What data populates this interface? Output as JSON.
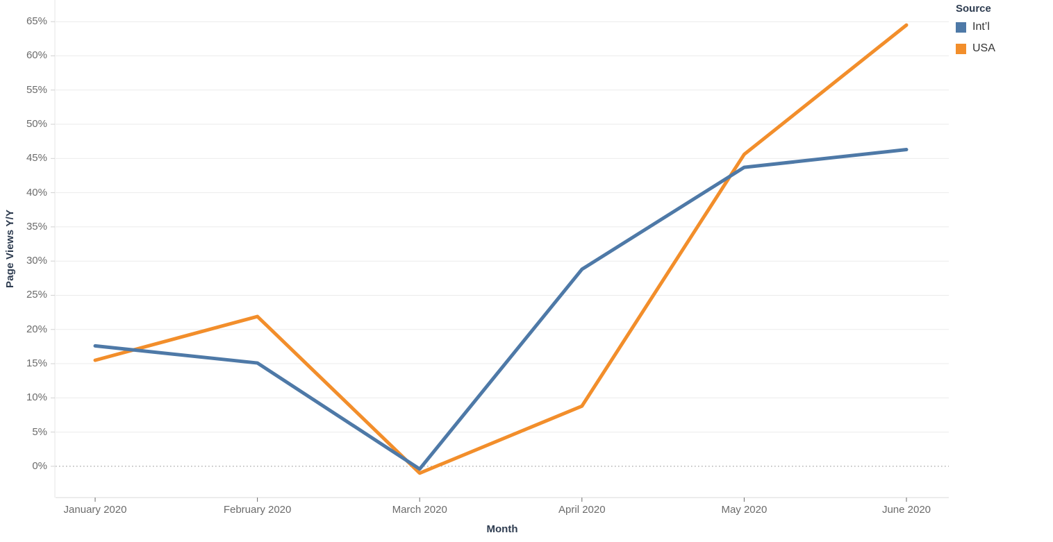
{
  "chart_data": {
    "type": "line",
    "title": "",
    "xlabel": "Month",
    "ylabel": "Page Views Y/Y",
    "legend_title": "Source",
    "legend_position": "top-right",
    "grid": "horizontal",
    "zero_line_style": "dotted",
    "ylim": [
      -4.6,
      68
    ],
    "y_tick_format": "percent",
    "categories": [
      "January 2020",
      "February 2020",
      "March 2020",
      "April 2020",
      "May 2020",
      "June 2020"
    ],
    "y_ticks": [
      {
        "value": 0,
        "label": "0%"
      },
      {
        "value": 5,
        "label": "5%"
      },
      {
        "value": 10,
        "label": "10%"
      },
      {
        "value": 15,
        "label": "15%"
      },
      {
        "value": 20,
        "label": "20%"
      },
      {
        "value": 25,
        "label": "25%"
      },
      {
        "value": 30,
        "label": "30%"
      },
      {
        "value": 35,
        "label": "35%"
      },
      {
        "value": 40,
        "label": "40%"
      },
      {
        "value": 45,
        "label": "45%"
      },
      {
        "value": 50,
        "label": "50%"
      },
      {
        "value": 55,
        "label": "55%"
      },
      {
        "value": 60,
        "label": "60%"
      },
      {
        "value": 65,
        "label": "65%"
      }
    ],
    "series": [
      {
        "name": "Int’l",
        "color": "#4e79a7",
        "values": [
          17.6,
          15.1,
          -0.4,
          28.8,
          43.7,
          46.3
        ]
      },
      {
        "name": "USA",
        "color": "#f28e2b",
        "values": [
          15.5,
          21.9,
          -1.0,
          8.8,
          45.6,
          64.5
        ]
      }
    ]
  },
  "colors": {
    "gridline": "#ebebeb",
    "zero_line": "#a6a6a6",
    "axis_line": "#d8d8d8",
    "tick_label": "#6b6b6b",
    "axis_title": "#2e3c50",
    "legend_text": "#333333"
  }
}
